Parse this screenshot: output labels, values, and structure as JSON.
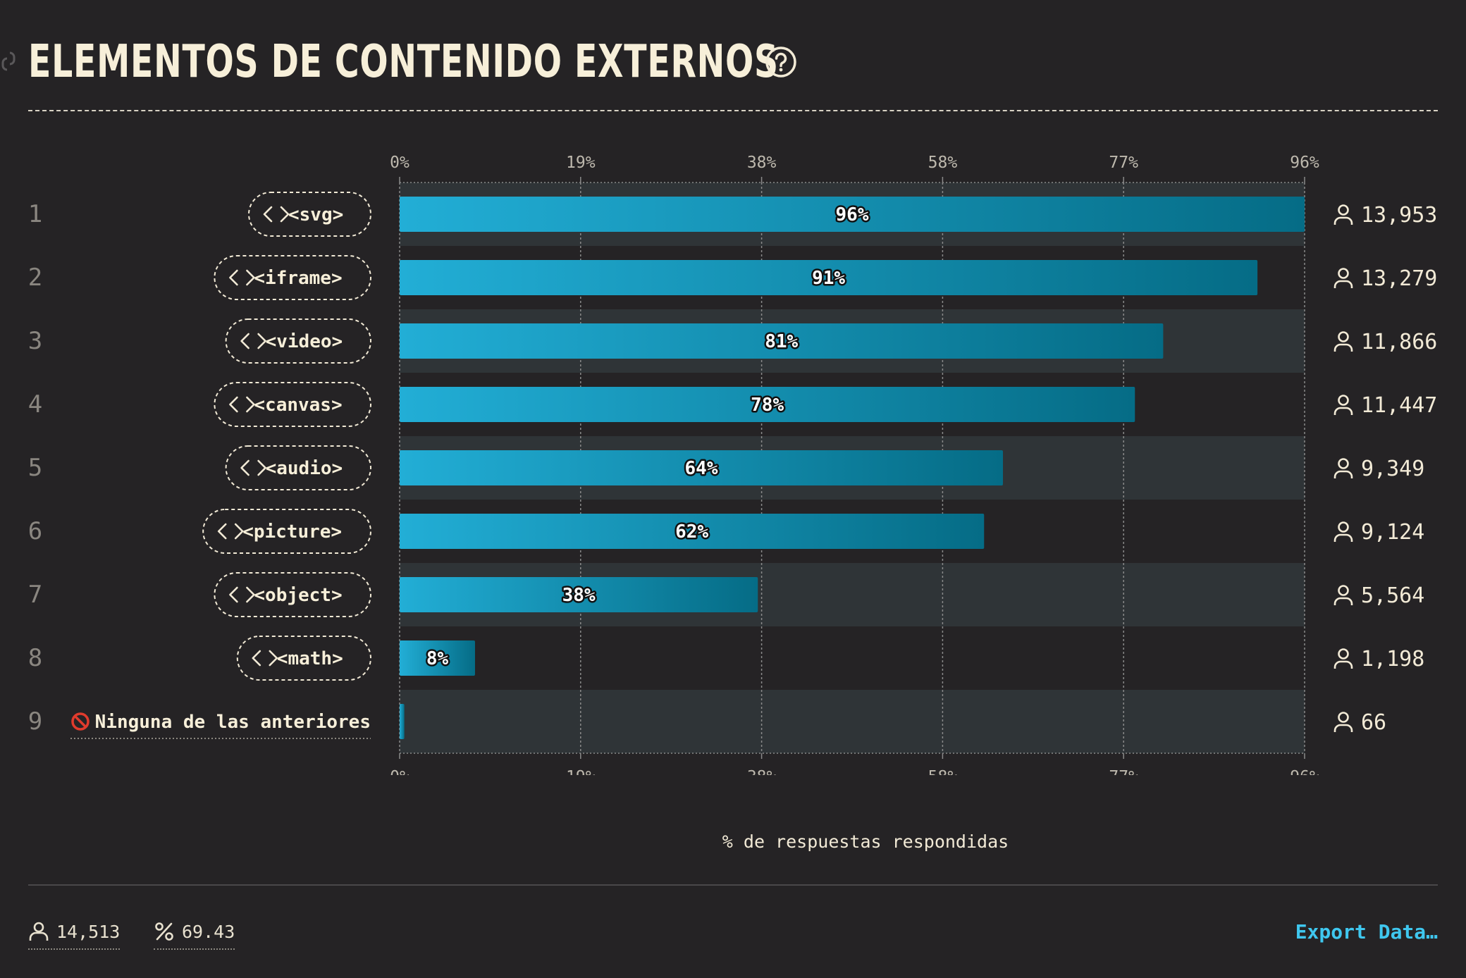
{
  "header": {
    "title": "ELEMENTOS DE CONTENIDO EXTERNOS"
  },
  "colors": {
    "background": "#252325",
    "row_band": "#2f3437",
    "bar_light": "#22aed6",
    "bar_dark": "#056c86",
    "text": "#f2ead6",
    "accent": "#3fc7ef"
  },
  "icons": {
    "rank_chip": "code-brackets-icon",
    "none_row": "prohibited-icon",
    "count": "user-icon",
    "completion": "percent-icon",
    "help": "question-circle-icon",
    "anchor": "link-icon"
  },
  "chart_data": {
    "type": "bar",
    "orientation": "horizontal",
    "categories": [
      "<svg>",
      "<iframe>",
      "<video>",
      "<canvas>",
      "<audio>",
      "<picture>",
      "<object>",
      "<math>",
      "Ninguna de las anteriores"
    ],
    "ranks": [
      "1",
      "2",
      "3",
      "4",
      "5",
      "6",
      "7",
      "8",
      "9"
    ],
    "values": [
      96,
      91,
      81,
      78,
      64,
      62,
      38,
      8,
      0.5
    ],
    "value_labels": [
      "96%",
      "91%",
      "81%",
      "78%",
      "64%",
      "62%",
      "38%",
      "8%",
      ""
    ],
    "counts": [
      "13,953",
      "13,279",
      "11,866",
      "11,447",
      "9,349",
      "9,124",
      "5,564",
      "1,198",
      "66"
    ],
    "xlim": [
      0,
      96
    ],
    "x_ticks": [
      "0%",
      "19%",
      "38%",
      "58%",
      "77%",
      "96%"
    ],
    "x_tick_values": [
      0,
      19.2,
      38.4,
      57.6,
      76.8,
      96
    ],
    "xlabel": "% de respuestas respondidas",
    "grid": true
  },
  "footer": {
    "respondents": "14,513",
    "completion": "69.43",
    "export_label": "Export Data…"
  }
}
